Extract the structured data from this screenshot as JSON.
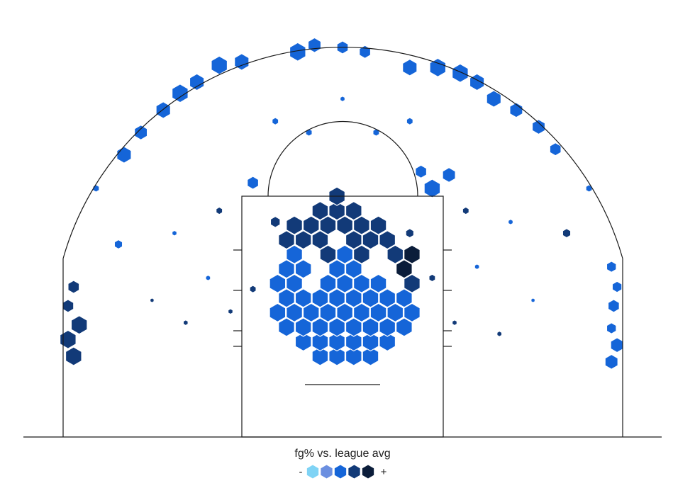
{
  "chart_data": {
    "type": "hexbin",
    "title": "",
    "legend": {
      "title": "fg% vs. league avg",
      "minus_label": "-",
      "plus_label": "+",
      "levels": [
        "very-below",
        "below",
        "average",
        "above",
        "very-above"
      ],
      "colors": [
        "#7fd3f5",
        "#6b8fe0",
        "#1565d8",
        "#123a78",
        "#0b1d3a"
      ]
    },
    "court_coords": "feet; x from -25 (left sideline) to 25 (right sideline), y = distance from baseline",
    "hexes": [
      {
        "x": -0.5,
        "y": 5,
        "size": 1,
        "level": 2
      },
      {
        "x": 1,
        "y": 5,
        "size": 1,
        "level": 2
      },
      {
        "x": -2,
        "y": 5,
        "size": 1,
        "level": 2
      },
      {
        "x": 2.5,
        "y": 5,
        "size": 1,
        "level": 2
      },
      {
        "x": -3.5,
        "y": 6.3,
        "size": 1,
        "level": 2
      },
      {
        "x": -2,
        "y": 6.3,
        "size": 1,
        "level": 2
      },
      {
        "x": -0.5,
        "y": 6.3,
        "size": 1,
        "level": 2
      },
      {
        "x": 1,
        "y": 6.3,
        "size": 1,
        "level": 2
      },
      {
        "x": 2.5,
        "y": 6.3,
        "size": 1,
        "level": 2
      },
      {
        "x": 4,
        "y": 6.3,
        "size": 1,
        "level": 2
      },
      {
        "x": -5,
        "y": 7.6,
        "size": 1,
        "level": 2
      },
      {
        "x": -3.5,
        "y": 7.6,
        "size": 1,
        "level": 2
      },
      {
        "x": -2,
        "y": 7.6,
        "size": 1,
        "level": 2
      },
      {
        "x": -0.5,
        "y": 7.6,
        "size": 1,
        "level": 2
      },
      {
        "x": 1,
        "y": 7.6,
        "size": 1,
        "level": 2
      },
      {
        "x": 2.5,
        "y": 7.6,
        "size": 1,
        "level": 2
      },
      {
        "x": 4,
        "y": 7.6,
        "size": 1,
        "level": 2
      },
      {
        "x": 5.5,
        "y": 7.6,
        "size": 1,
        "level": 2
      },
      {
        "x": -5.8,
        "y": 8.9,
        "size": 1,
        "level": 2
      },
      {
        "x": -4.3,
        "y": 8.9,
        "size": 1,
        "level": 2
      },
      {
        "x": -2.8,
        "y": 8.9,
        "size": 1,
        "level": 2
      },
      {
        "x": -1.3,
        "y": 8.9,
        "size": 1,
        "level": 2
      },
      {
        "x": 0.2,
        "y": 8.9,
        "size": 1,
        "level": 2
      },
      {
        "x": 1.7,
        "y": 8.9,
        "size": 1,
        "level": 2
      },
      {
        "x": 3.2,
        "y": 8.9,
        "size": 1,
        "level": 2
      },
      {
        "x": 4.7,
        "y": 8.9,
        "size": 1,
        "level": 2
      },
      {
        "x": 6.2,
        "y": 8.9,
        "size": 1,
        "level": 2
      },
      {
        "x": -5,
        "y": 10.2,
        "size": 1,
        "level": 2
      },
      {
        "x": -3.5,
        "y": 10.2,
        "size": 1,
        "level": 2
      },
      {
        "x": -2,
        "y": 10.2,
        "size": 1,
        "level": 2
      },
      {
        "x": -0.5,
        "y": 10.2,
        "size": 1,
        "level": 2
      },
      {
        "x": 1,
        "y": 10.2,
        "size": 1,
        "level": 2
      },
      {
        "x": 2.5,
        "y": 10.2,
        "size": 1,
        "level": 2
      },
      {
        "x": 4,
        "y": 10.2,
        "size": 1,
        "level": 2
      },
      {
        "x": 5.5,
        "y": 10.2,
        "size": 1,
        "level": 2
      },
      {
        "x": -5.8,
        "y": 11.5,
        "size": 1,
        "level": 2
      },
      {
        "x": -4.3,
        "y": 11.5,
        "size": 1,
        "level": 2
      },
      {
        "x": -1.3,
        "y": 11.5,
        "size": 1,
        "level": 2
      },
      {
        "x": 0.2,
        "y": 11.5,
        "size": 1,
        "level": 2
      },
      {
        "x": 1.7,
        "y": 11.5,
        "size": 1,
        "level": 2
      },
      {
        "x": 3.2,
        "y": 11.5,
        "size": 1,
        "level": 2
      },
      {
        "x": 6.2,
        "y": 11.5,
        "size": 1,
        "level": 3
      },
      {
        "x": -5,
        "y": 12.8,
        "size": 1,
        "level": 2
      },
      {
        "x": -3.5,
        "y": 12.8,
        "size": 1,
        "level": 2
      },
      {
        "x": -0.5,
        "y": 12.8,
        "size": 1,
        "level": 2
      },
      {
        "x": 1,
        "y": 12.8,
        "size": 1,
        "level": 2
      },
      {
        "x": 5.5,
        "y": 12.8,
        "size": 1,
        "level": 4
      },
      {
        "x": -4.3,
        "y": 14.1,
        "size": 1,
        "level": 2
      },
      {
        "x": -1.3,
        "y": 14.1,
        "size": 1,
        "level": 3
      },
      {
        "x": 0.2,
        "y": 14.1,
        "size": 1,
        "level": 2
      },
      {
        "x": 1.7,
        "y": 14.1,
        "size": 1,
        "level": 3
      },
      {
        "x": 4.7,
        "y": 14.1,
        "size": 1,
        "level": 3
      },
      {
        "x": 6.2,
        "y": 14.1,
        "size": 1,
        "level": 4
      },
      {
        "x": -5,
        "y": 15.4,
        "size": 1,
        "level": 3
      },
      {
        "x": -3.5,
        "y": 15.4,
        "size": 1,
        "level": 3
      },
      {
        "x": -2,
        "y": 15.4,
        "size": 1,
        "level": 3
      },
      {
        "x": 1,
        "y": 15.4,
        "size": 1,
        "level": 3
      },
      {
        "x": 2.5,
        "y": 15.4,
        "size": 1,
        "level": 3
      },
      {
        "x": 4,
        "y": 15.4,
        "size": 1,
        "level": 3
      },
      {
        "x": -4.3,
        "y": 16.7,
        "size": 1,
        "level": 3
      },
      {
        "x": -2.8,
        "y": 16.7,
        "size": 1,
        "level": 3
      },
      {
        "x": -1.3,
        "y": 16.7,
        "size": 1,
        "level": 3
      },
      {
        "x": 0.2,
        "y": 16.7,
        "size": 1,
        "level": 3
      },
      {
        "x": 1.7,
        "y": 16.7,
        "size": 1,
        "level": 3
      },
      {
        "x": 3.2,
        "y": 16.7,
        "size": 1,
        "level": 3
      },
      {
        "x": -2,
        "y": 18,
        "size": 1,
        "level": 3
      },
      {
        "x": -0.5,
        "y": 18,
        "size": 1,
        "level": 3
      },
      {
        "x": 1,
        "y": 18,
        "size": 1,
        "level": 3
      },
      {
        "x": -0.5,
        "y": 19.3,
        "size": 1,
        "level": 3
      },
      {
        "x": -24,
        "y": 5,
        "size": 1,
        "level": 3
      },
      {
        "x": -24.5,
        "y": 6.5,
        "size": 1,
        "level": 3
      },
      {
        "x": -23.5,
        "y": 7.8,
        "size": 1,
        "level": 3
      },
      {
        "x": -24.5,
        "y": 9.5,
        "size": 0.7,
        "level": 3
      },
      {
        "x": -24,
        "y": 11.2,
        "size": 0.7,
        "level": 3
      },
      {
        "x": 24,
        "y": 4.5,
        "size": 0.8,
        "level": 2
      },
      {
        "x": 24.5,
        "y": 6,
        "size": 0.8,
        "level": 2
      },
      {
        "x": 24,
        "y": 7.5,
        "size": 0.6,
        "level": 2
      },
      {
        "x": 24.2,
        "y": 9.5,
        "size": 0.7,
        "level": 2
      },
      {
        "x": 24.5,
        "y": 11.2,
        "size": 0.6,
        "level": 2
      },
      {
        "x": 24,
        "y": 13,
        "size": 0.6,
        "level": 2
      },
      {
        "x": -16,
        "y": 27,
        "size": 0.9,
        "level": 2
      },
      {
        "x": -14.5,
        "y": 28.5,
        "size": 1,
        "level": 2
      },
      {
        "x": -13,
        "y": 29.5,
        "size": 0.9,
        "level": 2
      },
      {
        "x": -18,
        "y": 25,
        "size": 0.8,
        "level": 2
      },
      {
        "x": -11,
        "y": 31,
        "size": 1,
        "level": 2
      },
      {
        "x": -9,
        "y": 31.3,
        "size": 0.9,
        "level": 2
      },
      {
        "x": -4,
        "y": 32.2,
        "size": 1,
        "level": 2
      },
      {
        "x": -2.5,
        "y": 32.8,
        "size": 0.8,
        "level": 2
      },
      {
        "x": 0,
        "y": 32.6,
        "size": 0.7,
        "level": 2
      },
      {
        "x": 2,
        "y": 32.2,
        "size": 0.7,
        "level": 2
      },
      {
        "x": 6,
        "y": 30.8,
        "size": 0.9,
        "level": 2
      },
      {
        "x": 8.5,
        "y": 30.8,
        "size": 1,
        "level": 2
      },
      {
        "x": 10.5,
        "y": 30.3,
        "size": 1,
        "level": 2
      },
      {
        "x": 12,
        "y": 29.5,
        "size": 0.9,
        "level": 2
      },
      {
        "x": 13.5,
        "y": 28,
        "size": 0.9,
        "level": 2
      },
      {
        "x": 15.5,
        "y": 27,
        "size": 0.8,
        "level": 2
      },
      {
        "x": 17.5,
        "y": 25.5,
        "size": 0.8,
        "level": 2
      },
      {
        "x": 19,
        "y": 23.5,
        "size": 0.7,
        "level": 2
      },
      {
        "x": -19.5,
        "y": 23,
        "size": 0.9,
        "level": 2
      },
      {
        "x": 8,
        "y": 20,
        "size": 1,
        "level": 2
      },
      {
        "x": 9.5,
        "y": 21.2,
        "size": 0.8,
        "level": 2
      },
      {
        "x": 7,
        "y": 21.5,
        "size": 0.7,
        "level": 2
      },
      {
        "x": -8,
        "y": 20.5,
        "size": 0.7,
        "level": 2
      },
      {
        "x": -20,
        "y": 15,
        "size": 0.5,
        "level": 2
      },
      {
        "x": 20,
        "y": 16,
        "size": 0.5,
        "level": 3
      },
      {
        "x": -6,
        "y": 17,
        "size": 0.6,
        "level": 3
      },
      {
        "x": 6,
        "y": 16,
        "size": 0.5,
        "level": 3
      },
      {
        "x": -8,
        "y": 11,
        "size": 0.4,
        "level": 3
      },
      {
        "x": 8,
        "y": 12,
        "size": 0.4,
        "level": 3
      },
      {
        "x": -10,
        "y": 9,
        "size": 0.3,
        "level": 3
      },
      {
        "x": 10,
        "y": 8,
        "size": 0.3,
        "level": 3
      },
      {
        "x": 14,
        "y": 7,
        "size": 0.3,
        "level": 3
      },
      {
        "x": -14,
        "y": 8,
        "size": 0.3,
        "level": 3
      },
      {
        "x": -12,
        "y": 12,
        "size": 0.3,
        "level": 2
      },
      {
        "x": 12,
        "y": 13,
        "size": 0.3,
        "level": 2
      },
      {
        "x": -17,
        "y": 10,
        "size": 0.25,
        "level": 3
      },
      {
        "x": 17,
        "y": 10,
        "size": 0.25,
        "level": 2
      },
      {
        "x": -15,
        "y": 16,
        "size": 0.3,
        "level": 2
      },
      {
        "x": 15,
        "y": 17,
        "size": 0.3,
        "level": 2
      },
      {
        "x": -11,
        "y": 18,
        "size": 0.4,
        "level": 3
      },
      {
        "x": 11,
        "y": 18,
        "size": 0.4,
        "level": 3
      },
      {
        "x": -22,
        "y": 20,
        "size": 0.4,
        "level": 2
      },
      {
        "x": 22,
        "y": 20,
        "size": 0.4,
        "level": 2
      },
      {
        "x": -3,
        "y": 25,
        "size": 0.4,
        "level": 2
      },
      {
        "x": 3,
        "y": 25,
        "size": 0.4,
        "level": 2
      },
      {
        "x": 0,
        "y": 28,
        "size": 0.3,
        "level": 2
      },
      {
        "x": -6,
        "y": 26,
        "size": 0.4,
        "level": 2
      },
      {
        "x": 6,
        "y": 26,
        "size": 0.4,
        "level": 2
      }
    ]
  }
}
